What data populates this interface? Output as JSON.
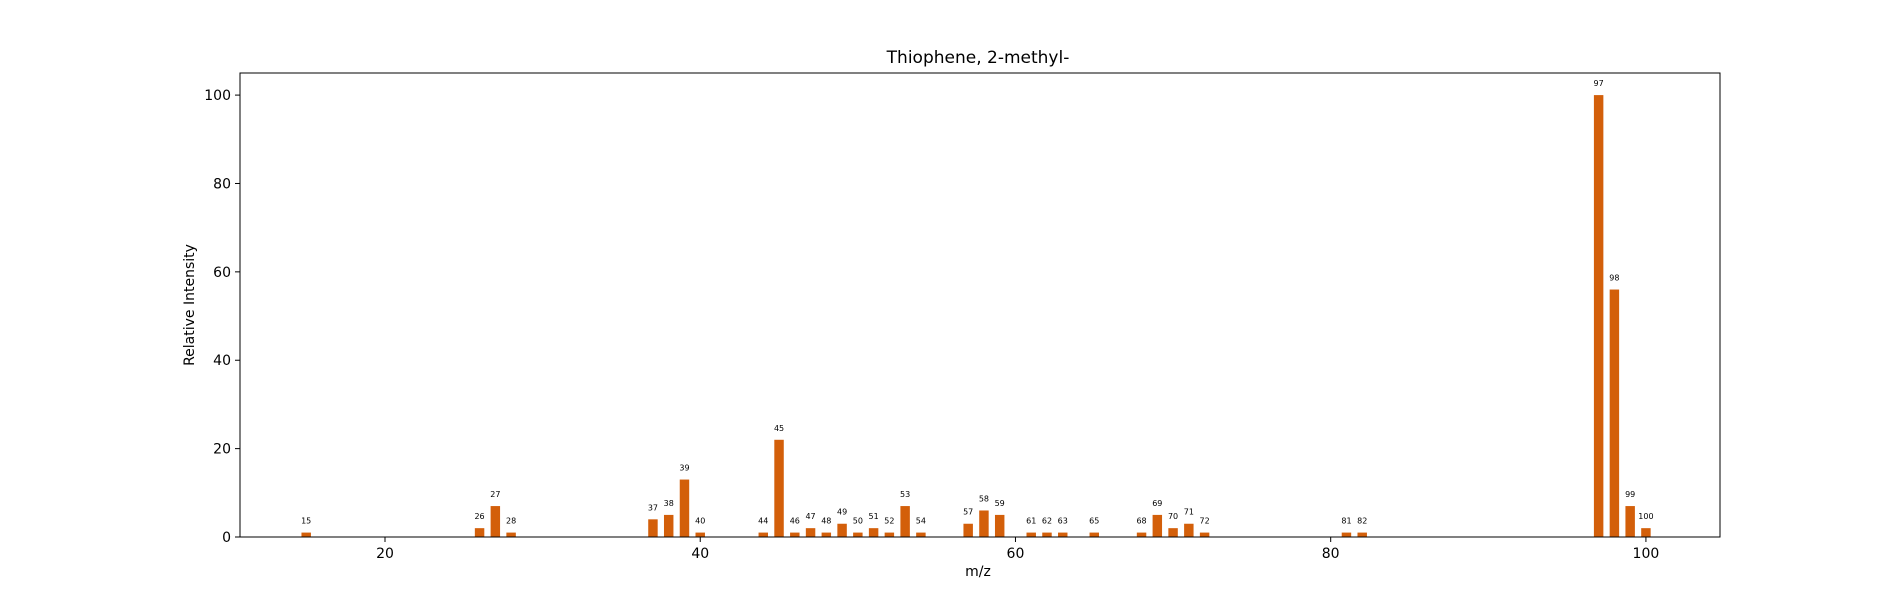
{
  "chart_data": {
    "type": "bar",
    "title": "Thiophene, 2-methyl-",
    "xlabel": "m/z",
    "ylabel": "Relative Intensity",
    "xlim": [
      10.8,
      104.7
    ],
    "ylim": [
      0,
      105
    ],
    "xticks": [
      20,
      40,
      60,
      80,
      100
    ],
    "yticks": [
      0,
      20,
      40,
      60,
      80,
      100
    ],
    "grid": false,
    "bar_color": "#d35f0a",
    "points": [
      {
        "x": 15,
        "y": 1
      },
      {
        "x": 26,
        "y": 2
      },
      {
        "x": 27,
        "y": 7
      },
      {
        "x": 28,
        "y": 1
      },
      {
        "x": 37,
        "y": 4
      },
      {
        "x": 38,
        "y": 5
      },
      {
        "x": 39,
        "y": 13
      },
      {
        "x": 40,
        "y": 1
      },
      {
        "x": 44,
        "y": 1
      },
      {
        "x": 45,
        "y": 22
      },
      {
        "x": 46,
        "y": 1
      },
      {
        "x": 47,
        "y": 2
      },
      {
        "x": 48,
        "y": 1
      },
      {
        "x": 49,
        "y": 3
      },
      {
        "x": 50,
        "y": 1
      },
      {
        "x": 51,
        "y": 2
      },
      {
        "x": 52,
        "y": 1
      },
      {
        "x": 53,
        "y": 7
      },
      {
        "x": 54,
        "y": 1
      },
      {
        "x": 57,
        "y": 3
      },
      {
        "x": 58,
        "y": 6
      },
      {
        "x": 59,
        "y": 5
      },
      {
        "x": 61,
        "y": 1
      },
      {
        "x": 62,
        "y": 1
      },
      {
        "x": 63,
        "y": 1
      },
      {
        "x": 65,
        "y": 1
      },
      {
        "x": 68,
        "y": 1
      },
      {
        "x": 69,
        "y": 5
      },
      {
        "x": 70,
        "y": 2
      },
      {
        "x": 71,
        "y": 3
      },
      {
        "x": 72,
        "y": 1
      },
      {
        "x": 81,
        "y": 1
      },
      {
        "x": 82,
        "y": 1
      },
      {
        "x": 97,
        "y": 100
      },
      {
        "x": 98,
        "y": 56
      },
      {
        "x": 99,
        "y": 7
      },
      {
        "x": 100,
        "y": 2
      }
    ]
  }
}
